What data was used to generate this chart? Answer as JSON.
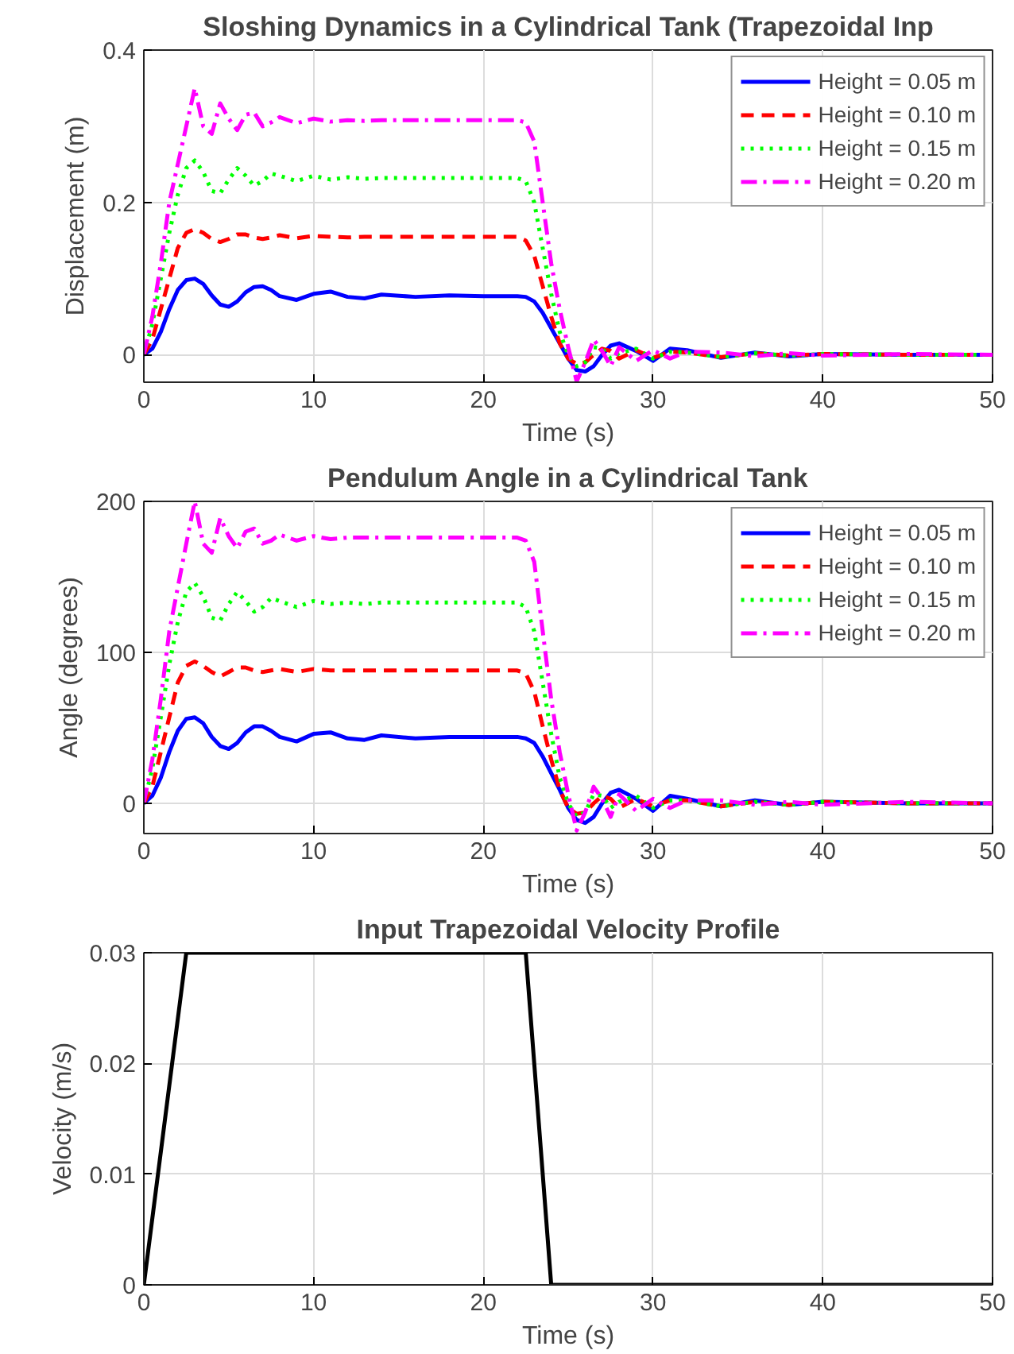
{
  "chart_data": [
    {
      "type": "line",
      "title": "Sloshing Dynamics in a Cylindrical Tank (Trapezoidal Inp",
      "xlabel": "Time (s)",
      "ylabel": "Displacement (m)",
      "x": [
        0,
        0.5,
        1,
        1.5,
        2,
        2.5,
        3,
        3.5,
        4,
        4.5,
        5,
        5.5,
        6,
        6.5,
        7,
        7.5,
        8,
        9,
        10,
        11,
        12,
        13,
        14,
        16,
        18,
        20,
        22,
        22.5,
        23,
        23.5,
        24,
        24.5,
        25,
        25.5,
        26,
        26.5,
        27,
        27.5,
        28,
        29,
        30,
        31,
        32,
        34,
        36,
        38,
        40,
        45,
        50
      ],
      "xlim": [
        0,
        50
      ],
      "xticks": [
        0,
        10,
        20,
        30,
        40,
        50
      ],
      "ylim": [
        -0.036,
        0.4
      ],
      "yticks": [
        0,
        0.2,
        0.4
      ],
      "grid": true,
      "legend": "top right",
      "series": [
        {
          "name": "Height = 0.05 m",
          "color": "#0000ff",
          "line_style": "solid",
          "values": [
            0,
            0.008,
            0.03,
            0.06,
            0.085,
            0.098,
            0.1,
            0.093,
            0.078,
            0.066,
            0.063,
            0.07,
            0.082,
            0.089,
            0.09,
            0.085,
            0.077,
            0.072,
            0.08,
            0.083,
            0.076,
            0.074,
            0.079,
            0.076,
            0.078,
            0.077,
            0.077,
            0.076,
            0.07,
            0.055,
            0.035,
            0.015,
            -0.005,
            -0.02,
            -0.022,
            -0.015,
            0,
            0.012,
            0.015,
            0.005,
            -0.008,
            0.008,
            0.006,
            -0.004,
            0.003,
            -0.002,
            0.001,
            0,
            0
          ]
        },
        {
          "name": "Height = 0.10 m",
          "color": "#ff0000",
          "line_style": "dashed",
          "values": [
            0,
            0.02,
            0.06,
            0.1,
            0.14,
            0.16,
            0.165,
            0.16,
            0.152,
            0.148,
            0.152,
            0.158,
            0.158,
            0.154,
            0.152,
            0.154,
            0.157,
            0.153,
            0.156,
            0.155,
            0.154,
            0.155,
            0.155,
            0.155,
            0.155,
            0.155,
            0.155,
            0.15,
            0.13,
            0.09,
            0.05,
            0.015,
            -0.005,
            -0.012,
            -0.01,
            0,
            0.008,
            0.005,
            -0.005,
            0.006,
            -0.004,
            0.004,
            0.003,
            -0.003,
            0.002,
            -0.001,
            0.001,
            0,
            0
          ]
        },
        {
          "name": "Height = 0.15 m",
          "color": "#00ff00",
          "line_style": "dotted",
          "values": [
            0,
            0.04,
            0.1,
            0.16,
            0.21,
            0.245,
            0.255,
            0.24,
            0.215,
            0.212,
            0.23,
            0.245,
            0.235,
            0.222,
            0.228,
            0.238,
            0.235,
            0.228,
            0.235,
            0.23,
            0.233,
            0.231,
            0.232,
            0.232,
            0.232,
            0.232,
            0.232,
            0.228,
            0.2,
            0.14,
            0.08,
            0.03,
            0,
            -0.015,
            -0.01,
            0.01,
            0.008,
            -0.005,
            0.002,
            0.008,
            -0.005,
            0.004,
            0.003,
            -0.003,
            0.002,
            -0.001,
            0.001,
            0,
            0
          ]
        },
        {
          "name": "Height = 0.20 m",
          "color": "#ff00ff",
          "line_style": "dashdot",
          "values": [
            0,
            0.05,
            0.12,
            0.2,
            0.25,
            0.3,
            0.35,
            0.3,
            0.29,
            0.33,
            0.31,
            0.295,
            0.315,
            0.318,
            0.3,
            0.305,
            0.312,
            0.304,
            0.31,
            0.306,
            0.308,
            0.307,
            0.308,
            0.308,
            0.308,
            0.308,
            0.308,
            0.305,
            0.28,
            0.2,
            0.12,
            0.06,
            0.01,
            -0.035,
            -0.01,
            0.02,
            0.005,
            -0.015,
            0.01,
            -0.008,
            0.006,
            -0.005,
            0.004,
            0.003,
            -0.002,
            0.002,
            -0.001,
            0.001,
            0
          ]
        }
      ]
    },
    {
      "type": "line",
      "title": "Pendulum Angle in a Cylindrical Tank",
      "xlabel": "Time (s)",
      "ylabel": "Angle (degrees)",
      "x": [
        0,
        0.5,
        1,
        1.5,
        2,
        2.5,
        3,
        3.5,
        4,
        4.5,
        5,
        5.5,
        6,
        6.5,
        7,
        7.5,
        8,
        9,
        10,
        11,
        12,
        13,
        14,
        16,
        18,
        20,
        22,
        22.5,
        23,
        23.5,
        24,
        24.5,
        25,
        25.5,
        26,
        26.5,
        27,
        27.5,
        28,
        29,
        30,
        31,
        32,
        34,
        36,
        38,
        40,
        45,
        50
      ],
      "xlim": [
        0,
        50
      ],
      "xticks": [
        0,
        10,
        20,
        30,
        40,
        50
      ],
      "ylim": [
        -20,
        200
      ],
      "yticks": [
        0,
        100,
        200
      ],
      "grid": true,
      "legend": "top right",
      "series": [
        {
          "name": "Height = 0.05 m",
          "color": "#0000ff",
          "line_style": "solid",
          "values": [
            0,
            5,
            17,
            34,
            48,
            56,
            57,
            53,
            44,
            38,
            36,
            40,
            47,
            51,
            51,
            48,
            44,
            41,
            46,
            47,
            43,
            42,
            45,
            43,
            44,
            44,
            44,
            43,
            40,
            31,
            20,
            9,
            -3,
            -11,
            -13,
            -9,
            0,
            7,
            9,
            3,
            -5,
            5,
            3,
            -2,
            2,
            -1,
            1,
            0,
            0
          ]
        },
        {
          "name": "Height = 0.10 m",
          "color": "#ff0000",
          "line_style": "dashed",
          "values": [
            0,
            11,
            34,
            57,
            80,
            91,
            94,
            91,
            87,
            84,
            87,
            90,
            90,
            88,
            87,
            88,
            89,
            87,
            89,
            88,
            88,
            88,
            88,
            88,
            88,
            88,
            88,
            86,
            74,
            51,
            29,
            9,
            -3,
            -7,
            -6,
            0,
            5,
            3,
            -3,
            3,
            -2,
            2,
            2,
            -2,
            1,
            -1,
            1,
            0,
            0
          ]
        },
        {
          "name": "Height = 0.15 m",
          "color": "#00ff00",
          "line_style": "dotted",
          "values": [
            0,
            23,
            57,
            92,
            120,
            140,
            146,
            137,
            123,
            121,
            132,
            140,
            134,
            127,
            130,
            136,
            134,
            130,
            134,
            132,
            133,
            132,
            133,
            133,
            133,
            133,
            133,
            130,
            114,
            80,
            46,
            17,
            0,
            -9,
            -6,
            6,
            5,
            -3,
            1,
            5,
            -3,
            2,
            2,
            -2,
            1,
            -1,
            1,
            0,
            0
          ]
        },
        {
          "name": "Height = 0.20 m",
          "color": "#ff00ff",
          "line_style": "dashdot",
          "values": [
            0,
            29,
            69,
            114,
            143,
            172,
            200,
            172,
            166,
            189,
            177,
            169,
            180,
            182,
            172,
            174,
            178,
            174,
            177,
            175,
            176,
            176,
            176,
            176,
            176,
            176,
            176,
            174,
            160,
            114,
            69,
            34,
            6,
            -18,
            -6,
            11,
            3,
            -9,
            6,
            -5,
            3,
            -3,
            2,
            2,
            -1,
            1,
            -1,
            1,
            0
          ]
        }
      ]
    },
    {
      "type": "line",
      "title": "Input Trapezoidal Velocity Profile",
      "xlabel": "Time (s)",
      "ylabel": "Velocity (m/s)",
      "x": [
        0,
        2.5,
        22.5,
        24,
        50
      ],
      "xlim": [
        0,
        50
      ],
      "xticks": [
        0,
        10,
        20,
        30,
        40,
        50
      ],
      "ylim": [
        0,
        0.03
      ],
      "yticks": [
        0,
        0.01,
        0.02,
        0.03
      ],
      "grid": true,
      "series": [
        {
          "color": "#000000",
          "line_style": "solid",
          "values": [
            0,
            0.03,
            0.03,
            0,
            0
          ]
        }
      ]
    }
  ]
}
